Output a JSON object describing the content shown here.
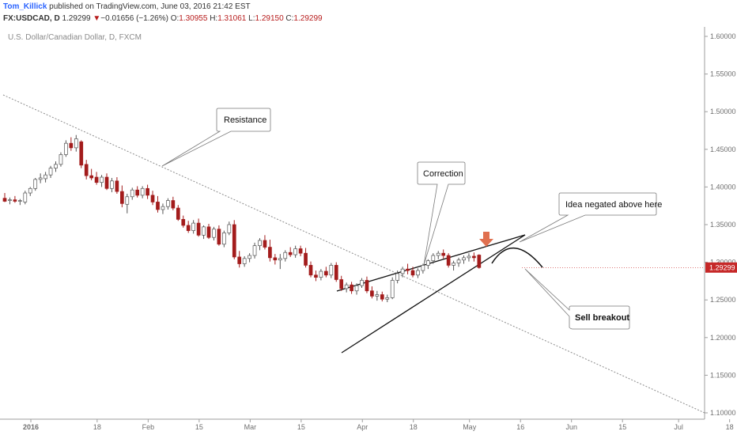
{
  "header": {
    "author": "Tom_Killick",
    "published": "published on TradingView.com, June 03, 2016 21:42 EST",
    "symbol": "FX:USDCAD, D",
    "last": "1.29299",
    "change_arrow": "▼",
    "change": "−0.01656 (−1.26%)",
    "o_label": "O:",
    "o_value": "1.30955",
    "h_label": "H:",
    "h_value": "1.31061",
    "l_label": "L:",
    "l_value": "1.29150",
    "c_label": "C:",
    "c_value": "1.29299"
  },
  "colors": {
    "down": "#a31c1c",
    "up": "#ffffff",
    "outline": "#555555",
    "arrow": "#e0704f",
    "price_tag": "#c62828"
  },
  "chart_data": {
    "type": "candlestick",
    "title": "U.S. Dollar/Canadian Dollar, D, FXCM",
    "ylim": [
      1.095,
      1.61
    ],
    "x_tick_labels": [
      "2016",
      "18",
      "Feb",
      "15",
      "Mar",
      "15",
      "Apr",
      "18",
      "May",
      "16",
      "Jun",
      "15",
      "Jul",
      "18"
    ],
    "x_tick_index": [
      0,
      13,
      23,
      33,
      43,
      53,
      65,
      75,
      86,
      96,
      106,
      116,
      127,
      137
    ],
    "y_ticks": [
      "1.60000",
      "1.55000",
      "1.50000",
      "1.45000",
      "1.40000",
      "1.35000",
      "1.30000",
      "1.25000",
      "1.20000",
      "1.15000",
      "1.10000"
    ],
    "y_tick_values": [
      1.6,
      1.55,
      1.5,
      1.45,
      1.4,
      1.35,
      1.3,
      1.25,
      1.2,
      1.15,
      1.1
    ],
    "last_price_label": "1.29299",
    "last_price": 1.29299,
    "candles": [
      {
        "o": 1.385,
        "h": 1.392,
        "l": 1.38,
        "c": 1.381
      },
      {
        "o": 1.382,
        "h": 1.386,
        "l": 1.377,
        "c": 1.383
      },
      {
        "o": 1.383,
        "h": 1.388,
        "l": 1.379,
        "c": 1.381
      },
      {
        "o": 1.381,
        "h": 1.384,
        "l": 1.376,
        "c": 1.382
      },
      {
        "o": 1.38,
        "h": 1.395,
        "l": 1.377,
        "c": 1.392
      },
      {
        "o": 1.392,
        "h": 1.4,
        "l": 1.388,
        "c": 1.398
      },
      {
        "o": 1.398,
        "h": 1.412,
        "l": 1.395,
        "c": 1.41
      },
      {
        "o": 1.41,
        "h": 1.418,
        "l": 1.405,
        "c": 1.412
      },
      {
        "o": 1.411,
        "h": 1.42,
        "l": 1.406,
        "c": 1.416
      },
      {
        "o": 1.416,
        "h": 1.428,
        "l": 1.412,
        "c": 1.425
      },
      {
        "o": 1.425,
        "h": 1.434,
        "l": 1.42,
        "c": 1.43
      },
      {
        "o": 1.43,
        "h": 1.446,
        "l": 1.427,
        "c": 1.443
      },
      {
        "o": 1.443,
        "h": 1.462,
        "l": 1.44,
        "c": 1.458
      },
      {
        "o": 1.458,
        "h": 1.466,
        "l": 1.448,
        "c": 1.452
      },
      {
        "o": 1.452,
        "h": 1.469,
        "l": 1.447,
        "c": 1.464
      },
      {
        "o": 1.46,
        "h": 1.462,
        "l": 1.425,
        "c": 1.429
      },
      {
        "o": 1.43,
        "h": 1.436,
        "l": 1.41,
        "c": 1.415
      },
      {
        "o": 1.415,
        "h": 1.424,
        "l": 1.409,
        "c": 1.412
      },
      {
        "o": 1.413,
        "h": 1.42,
        "l": 1.403,
        "c": 1.406
      },
      {
        "o": 1.406,
        "h": 1.416,
        "l": 1.4,
        "c": 1.413
      },
      {
        "o": 1.413,
        "h": 1.418,
        "l": 1.396,
        "c": 1.398
      },
      {
        "o": 1.398,
        "h": 1.412,
        "l": 1.393,
        "c": 1.408
      },
      {
        "o": 1.408,
        "h": 1.413,
        "l": 1.391,
        "c": 1.394
      },
      {
        "o": 1.394,
        "h": 1.402,
        "l": 1.373,
        "c": 1.378
      },
      {
        "o": 1.377,
        "h": 1.391,
        "l": 1.365,
        "c": 1.387
      },
      {
        "o": 1.387,
        "h": 1.399,
        "l": 1.383,
        "c": 1.396
      },
      {
        "o": 1.396,
        "h": 1.401,
        "l": 1.386,
        "c": 1.389
      },
      {
        "o": 1.389,
        "h": 1.401,
        "l": 1.385,
        "c": 1.398
      },
      {
        "o": 1.398,
        "h": 1.403,
        "l": 1.384,
        "c": 1.389
      },
      {
        "o": 1.389,
        "h": 1.395,
        "l": 1.376,
        "c": 1.38
      },
      {
        "o": 1.38,
        "h": 1.388,
        "l": 1.366,
        "c": 1.37
      },
      {
        "o": 1.37,
        "h": 1.378,
        "l": 1.364,
        "c": 1.374
      },
      {
        "o": 1.374,
        "h": 1.385,
        "l": 1.37,
        "c": 1.382
      },
      {
        "o": 1.382,
        "h": 1.387,
        "l": 1.369,
        "c": 1.372
      },
      {
        "o": 1.372,
        "h": 1.376,
        "l": 1.355,
        "c": 1.357
      },
      {
        "o": 1.357,
        "h": 1.362,
        "l": 1.346,
        "c": 1.349
      },
      {
        "o": 1.349,
        "h": 1.355,
        "l": 1.339,
        "c": 1.342
      },
      {
        "o": 1.342,
        "h": 1.356,
        "l": 1.338,
        "c": 1.352
      },
      {
        "o": 1.352,
        "h": 1.358,
        "l": 1.334,
        "c": 1.336
      },
      {
        "o": 1.336,
        "h": 1.349,
        "l": 1.331,
        "c": 1.347
      },
      {
        "o": 1.347,
        "h": 1.351,
        "l": 1.331,
        "c": 1.333
      },
      {
        "o": 1.333,
        "h": 1.347,
        "l": 1.329,
        "c": 1.344
      },
      {
        "o": 1.344,
        "h": 1.349,
        "l": 1.322,
        "c": 1.324
      },
      {
        "o": 1.324,
        "h": 1.342,
        "l": 1.32,
        "c": 1.339
      },
      {
        "o": 1.339,
        "h": 1.354,
        "l": 1.336,
        "c": 1.35
      },
      {
        "o": 1.35,
        "h": 1.356,
        "l": 1.304,
        "c": 1.307
      },
      {
        "o": 1.307,
        "h": 1.315,
        "l": 1.293,
        "c": 1.298
      },
      {
        "o": 1.298,
        "h": 1.308,
        "l": 1.294,
        "c": 1.305
      },
      {
        "o": 1.305,
        "h": 1.312,
        "l": 1.3,
        "c": 1.309
      },
      {
        "o": 1.309,
        "h": 1.326,
        "l": 1.305,
        "c": 1.322
      },
      {
        "o": 1.322,
        "h": 1.332,
        "l": 1.316,
        "c": 1.329
      },
      {
        "o": 1.329,
        "h": 1.336,
        "l": 1.317,
        "c": 1.32
      },
      {
        "o": 1.32,
        "h": 1.33,
        "l": 1.301,
        "c": 1.306
      },
      {
        "o": 1.306,
        "h": 1.311,
        "l": 1.297,
        "c": 1.303
      },
      {
        "o": 1.303,
        "h": 1.311,
        "l": 1.291,
        "c": 1.305
      },
      {
        "o": 1.305,
        "h": 1.316,
        "l": 1.301,
        "c": 1.313
      },
      {
        "o": 1.313,
        "h": 1.32,
        "l": 1.307,
        "c": 1.31
      },
      {
        "o": 1.31,
        "h": 1.322,
        "l": 1.306,
        "c": 1.318
      },
      {
        "o": 1.318,
        "h": 1.322,
        "l": 1.308,
        "c": 1.312
      },
      {
        "o": 1.312,
        "h": 1.319,
        "l": 1.293,
        "c": 1.296
      },
      {
        "o": 1.296,
        "h": 1.301,
        "l": 1.28,
        "c": 1.283
      },
      {
        "o": 1.283,
        "h": 1.289,
        "l": 1.275,
        "c": 1.28
      },
      {
        "o": 1.28,
        "h": 1.291,
        "l": 1.276,
        "c": 1.288
      },
      {
        "o": 1.288,
        "h": 1.294,
        "l": 1.28,
        "c": 1.283
      },
      {
        "o": 1.283,
        "h": 1.299,
        "l": 1.279,
        "c": 1.296
      },
      {
        "o": 1.296,
        "h": 1.3,
        "l": 1.274,
        "c": 1.277
      },
      {
        "o": 1.277,
        "h": 1.282,
        "l": 1.262,
        "c": 1.265
      },
      {
        "o": 1.265,
        "h": 1.273,
        "l": 1.26,
        "c": 1.27
      },
      {
        "o": 1.27,
        "h": 1.274,
        "l": 1.258,
        "c": 1.262
      },
      {
        "o": 1.262,
        "h": 1.272,
        "l": 1.257,
        "c": 1.269
      },
      {
        "o": 1.269,
        "h": 1.279,
        "l": 1.266,
        "c": 1.276
      },
      {
        "o": 1.276,
        "h": 1.281,
        "l": 1.259,
        "c": 1.262
      },
      {
        "o": 1.262,
        "h": 1.268,
        "l": 1.252,
        "c": 1.255
      },
      {
        "o": 1.255,
        "h": 1.262,
        "l": 1.249,
        "c": 1.257
      },
      {
        "o": 1.257,
        "h": 1.261,
        "l": 1.248,
        "c": 1.251
      },
      {
        "o": 1.251,
        "h": 1.257,
        "l": 1.247,
        "c": 1.253
      },
      {
        "o": 1.253,
        "h": 1.28,
        "l": 1.251,
        "c": 1.276
      },
      {
        "o": 1.276,
        "h": 1.289,
        "l": 1.272,
        "c": 1.285
      },
      {
        "o": 1.285,
        "h": 1.294,
        "l": 1.28,
        "c": 1.291
      },
      {
        "o": 1.291,
        "h": 1.298,
        "l": 1.284,
        "c": 1.289
      },
      {
        "o": 1.289,
        "h": 1.294,
        "l": 1.28,
        "c": 1.283
      },
      {
        "o": 1.283,
        "h": 1.292,
        "l": 1.279,
        "c": 1.289
      },
      {
        "o": 1.289,
        "h": 1.298,
        "l": 1.285,
        "c": 1.296
      },
      {
        "o": 1.296,
        "h": 1.304,
        "l": 1.291,
        "c": 1.302
      },
      {
        "o": 1.302,
        "h": 1.312,
        "l": 1.298,
        "c": 1.309
      },
      {
        "o": 1.309,
        "h": 1.315,
        "l": 1.304,
        "c": 1.312
      },
      {
        "o": 1.312,
        "h": 1.317,
        "l": 1.305,
        "c": 1.309
      },
      {
        "o": 1.309,
        "h": 1.312,
        "l": 1.293,
        "c": 1.296
      },
      {
        "o": 1.296,
        "h": 1.302,
        "l": 1.289,
        "c": 1.299
      },
      {
        "o": 1.299,
        "h": 1.306,
        "l": 1.294,
        "c": 1.303
      },
      {
        "o": 1.303,
        "h": 1.309,
        "l": 1.298,
        "c": 1.306
      },
      {
        "o": 1.306,
        "h": 1.312,
        "l": 1.301,
        "c": 1.308
      },
      {
        "o": 1.308,
        "h": 1.313,
        "l": 1.301,
        "c": 1.306
      },
      {
        "o": 1.30955,
        "h": 1.31061,
        "l": 1.2915,
        "c": 1.29299
      }
    ]
  },
  "annotations": {
    "resistance": "Resistance",
    "correction": "Correction",
    "idea_negated": "Idea negated above here",
    "sell_breakout": "Sell breakout"
  }
}
